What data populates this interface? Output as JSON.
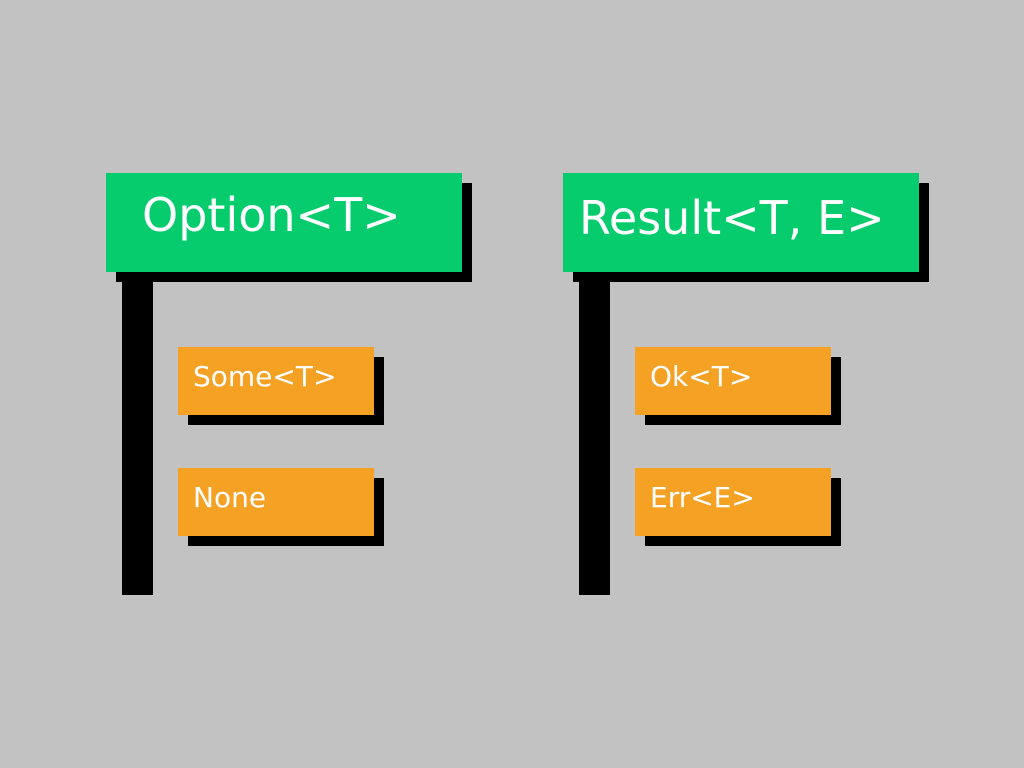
{
  "colors": {
    "background": "#c2c2c2",
    "header": "#07cc6e",
    "variant": "#f5a124",
    "shadow": "#000000",
    "text": "#ffffff"
  },
  "groups": [
    {
      "title": "Option<T>",
      "variants": [
        "Some<T>",
        "None"
      ]
    },
    {
      "title": "Result<T, E>",
      "variants": [
        "Ok<T>",
        "Err<E>"
      ]
    }
  ]
}
